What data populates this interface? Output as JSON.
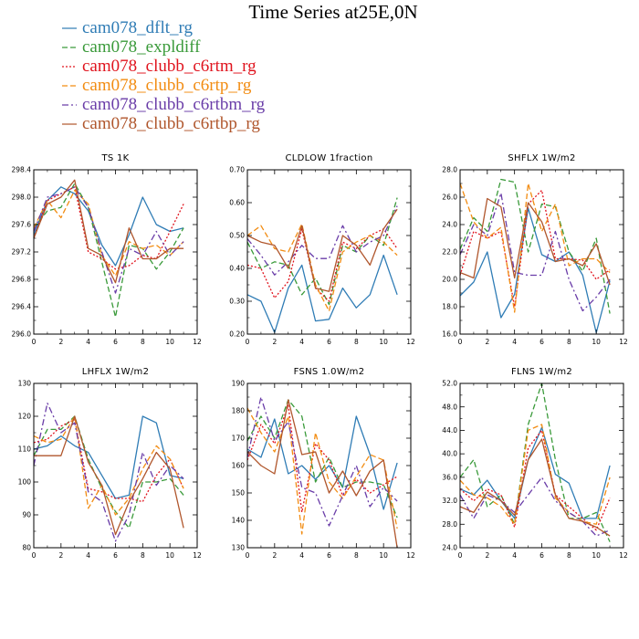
{
  "figure": {
    "title": "Time Series at25E,0N"
  },
  "colors": {
    "cam078_dflt_rg": "#2f7cb5",
    "cam078_expldiff": "#3a9a3a",
    "cam078_clubb_c6rtm_rg": "#e0141e",
    "cam078_clubb_c6rtp_rg": "#f28c12",
    "cam078_clubb_c6rtbm_rg": "#6a3da8",
    "cam078_clubb_c6rtbp_rg": "#b0562c"
  },
  "legend": [
    {
      "label": "cam078_dflt_rg",
      "color": "#2f7cb5",
      "dash": "solid"
    },
    {
      "label": "cam078_expldiff",
      "color": "#3a9a3a",
      "dash": "dashed"
    },
    {
      "label": "cam078_clubb_c6rtm_rg",
      "color": "#e0141e",
      "dash": "dotted"
    },
    {
      "label": "cam078_clubb_c6rtp_rg",
      "color": "#f28c12",
      "dash": "dashed"
    },
    {
      "label": "cam078_clubb_c6rtbm_rg",
      "color": "#6a3da8",
      "dash": "dashdot"
    },
    {
      "label": "cam078_clubb_c6rtbp_rg",
      "color": "#b0562c",
      "dash": "solid"
    }
  ],
  "chart_data": [
    {
      "type": "line",
      "title": "TS   1K",
      "xlim": [
        0,
        12
      ],
      "xticks": [
        0,
        2,
        4,
        6,
        8,
        10,
        12
      ],
      "ylim": [
        296.0,
        298.4
      ],
      "yticks": [
        "296.0",
        "296.4",
        "296.8",
        "297.2",
        "297.6",
        "298.0",
        "298.4"
      ],
      "x": [
        0,
        1,
        2,
        3,
        4,
        5,
        6,
        7,
        8,
        9,
        10,
        11
      ],
      "series": [
        {
          "name": "cam078_dflt_rg",
          "values": [
            297.45,
            297.95,
            298.15,
            298.05,
            297.8,
            297.3,
            297.0,
            297.45,
            298.0,
            297.6,
            297.5,
            297.55
          ]
        },
        {
          "name": "cam078_expldiff",
          "values": [
            297.55,
            297.8,
            297.85,
            298.2,
            297.85,
            297.05,
            296.25,
            297.3,
            297.25,
            296.95,
            297.2,
            297.55
          ]
        },
        {
          "name": "cam078_clubb_c6rtm_rg",
          "values": [
            297.4,
            297.95,
            298.05,
            298.15,
            297.2,
            297.1,
            296.95,
            297.0,
            297.15,
            297.1,
            297.5,
            297.9
          ]
        },
        {
          "name": "cam078_clubb_c6rtp_rg",
          "values": [
            297.55,
            297.95,
            297.7,
            298.1,
            297.9,
            297.15,
            296.85,
            297.35,
            297.25,
            297.3,
            297.15,
            297.35
          ]
        },
        {
          "name": "cam078_clubb_c6rtbm_rg",
          "values": [
            297.5,
            298.0,
            298.05,
            298.15,
            297.85,
            297.2,
            296.6,
            297.25,
            297.15,
            297.5,
            297.15,
            297.35
          ]
        },
        {
          "name": "cam078_clubb_c6rtbp_rg",
          "values": [
            297.4,
            297.9,
            298.0,
            298.25,
            297.25,
            297.15,
            296.75,
            297.55,
            297.1,
            297.1,
            297.25,
            297.25
          ]
        }
      ]
    },
    {
      "type": "line",
      "title": "CLDLOW   1fraction",
      "xlim": [
        0,
        12
      ],
      "xticks": [
        0,
        2,
        4,
        6,
        8,
        10,
        12
      ],
      "ylim": [
        0.2,
        0.7
      ],
      "yticks": [
        "0.20",
        "0.30",
        "0.40",
        "0.50",
        "0.60",
        "0.70"
      ],
      "x": [
        0,
        1,
        2,
        3,
        4,
        5,
        6,
        7,
        8,
        9,
        10,
        11
      ],
      "series": [
        {
          "name": "cam078_dflt_rg",
          "values": [
            0.32,
            0.3,
            0.205,
            0.34,
            0.41,
            0.24,
            0.245,
            0.34,
            0.28,
            0.32,
            0.44,
            0.32
          ]
        },
        {
          "name": "cam078_expldiff",
          "values": [
            0.48,
            0.4,
            0.42,
            0.41,
            0.32,
            0.37,
            0.29,
            0.47,
            0.45,
            0.5,
            0.47,
            0.615
          ]
        },
        {
          "name": "cam078_clubb_c6rtm_rg",
          "values": [
            0.41,
            0.4,
            0.31,
            0.36,
            0.52,
            0.34,
            0.3,
            0.48,
            0.46,
            0.5,
            0.52,
            0.46
          ]
        },
        {
          "name": "cam078_clubb_c6rtp_rg",
          "values": [
            0.5,
            0.53,
            0.46,
            0.45,
            0.535,
            0.35,
            0.27,
            0.45,
            0.48,
            0.5,
            0.48,
            0.44
          ]
        },
        {
          "name": "cam078_clubb_c6rtbm_rg",
          "values": [
            0.49,
            0.44,
            0.38,
            0.42,
            0.47,
            0.43,
            0.43,
            0.53,
            0.45,
            0.48,
            0.5,
            0.59
          ]
        },
        {
          "name": "cam078_clubb_c6rtbp_rg",
          "values": [
            0.5,
            0.48,
            0.47,
            0.4,
            0.53,
            0.34,
            0.33,
            0.5,
            0.47,
            0.41,
            0.52,
            0.58
          ]
        }
      ]
    },
    {
      "type": "line",
      "title": "SHFLX   1W/m2",
      "xlim": [
        0,
        12
      ],
      "xticks": [
        0,
        2,
        4,
        6,
        8,
        10,
        12
      ],
      "ylim": [
        16.0,
        28.0
      ],
      "yticks": [
        "16.0",
        "18.0",
        "20.0",
        "22.0",
        "24.0",
        "26.0",
        "28.0"
      ],
      "x": [
        0,
        1,
        2,
        3,
        4,
        5,
        6,
        7,
        8,
        9,
        10,
        11
      ],
      "series": [
        {
          "name": "cam078_dflt_rg",
          "values": [
            18.8,
            19.8,
            22.0,
            17.2,
            18.9,
            25.2,
            21.8,
            21.3,
            22.0,
            20.3,
            16.1,
            19.9
          ]
        },
        {
          "name": "cam078_expldiff",
          "values": [
            22.2,
            24.5,
            23.5,
            27.3,
            27.1,
            22.0,
            25.5,
            25.3,
            22.0,
            20.6,
            23.0,
            17.5
          ]
        },
        {
          "name": "cam078_clubb_c6rtm_rg",
          "values": [
            20.3,
            23.5,
            23.0,
            23.5,
            18.0,
            25.5,
            26.5,
            21.5,
            21.5,
            21.4,
            20.0,
            20.7
          ]
        },
        {
          "name": "cam078_clubb_c6rtp_rg",
          "values": [
            27.0,
            24.2,
            23.0,
            23.8,
            17.6,
            27.0,
            23.5,
            25.5,
            21.0,
            21.5,
            21.5,
            20.5
          ]
        },
        {
          "name": "cam078_clubb_c6rtbm_rg",
          "values": [
            21.8,
            24.0,
            23.2,
            26.3,
            20.5,
            20.3,
            20.3,
            23.5,
            20.0,
            17.7,
            18.7,
            20.0
          ]
        },
        {
          "name": "cam078_clubb_c6rtbp_rg",
          "values": [
            20.5,
            20.1,
            25.9,
            25.3,
            20.1,
            25.6,
            24.2,
            21.3,
            21.5,
            21.0,
            22.6,
            19.6
          ]
        }
      ]
    },
    {
      "type": "line",
      "title": "LHFLX   1W/m2",
      "xlim": [
        0,
        12
      ],
      "xticks": [
        0,
        2,
        4,
        6,
        8,
        10,
        12
      ],
      "ylim": [
        80,
        130
      ],
      "yticks": [
        "80",
        "90",
        "100",
        "110",
        "120",
        "130"
      ],
      "x": [
        0,
        1,
        2,
        3,
        4,
        5,
        6,
        7,
        8,
        9,
        10,
        11
      ],
      "series": [
        {
          "name": "cam078_dflt_rg",
          "values": [
            110,
            111,
            114,
            111,
            109,
            102,
            95,
            96,
            120,
            118,
            102,
            101
          ]
        },
        {
          "name": "cam078_expldiff",
          "values": [
            108,
            116,
            116,
            120,
            107,
            98,
            91,
            86,
            100,
            100,
            101,
            96
          ]
        },
        {
          "name": "cam078_clubb_c6rtm_rg",
          "values": [
            112,
            113,
            117,
            119,
            98,
            97,
            95,
            95,
            94,
            102,
            107,
            98
          ]
        },
        {
          "name": "cam078_clubb_c6rtp_rg",
          "values": [
            114,
            112,
            113,
            120,
            92,
            99,
            90,
            95,
            104,
            111,
            107,
            98
          ]
        },
        {
          "name": "cam078_clubb_c6rtbm_rg",
          "values": [
            105,
            124,
            115,
            118,
            97,
            94,
            82,
            90,
            109,
            99,
            105,
            101
          ]
        },
        {
          "name": "cam078_clubb_c6rtbp_rg",
          "values": [
            108,
            108,
            108,
            120,
            106,
            99,
            84,
            94,
            101,
            109,
            104,
            86
          ]
        }
      ]
    },
    {
      "type": "line",
      "title": "FSNS   1.0W/m2",
      "xlim": [
        0,
        12
      ],
      "xticks": [
        0,
        2,
        4,
        6,
        8,
        10,
        12
      ],
      "ylim": [
        130,
        190
      ],
      "yticks": [
        "130",
        "140",
        "150",
        "160",
        "170",
        "180",
        "190"
      ],
      "x": [
        0,
        1,
        2,
        3,
        4,
        5,
        6,
        7,
        8,
        9,
        10,
        11
      ],
      "series": [
        {
          "name": "cam078_dflt_rg",
          "values": [
            166,
            163,
            177,
            157,
            160,
            155,
            160,
            152,
            178,
            164,
            144,
            161
          ]
        },
        {
          "name": "cam078_expldiff",
          "values": [
            169,
            178,
            170,
            184,
            178,
            154,
            163,
            152,
            154,
            154,
            153,
            141
          ]
        },
        {
          "name": "cam078_clubb_c6rtm_rg",
          "values": [
            162,
            175,
            168,
            182,
            143,
            168,
            162,
            149,
            155,
            150,
            153,
            156
          ]
        },
        {
          "name": "cam078_clubb_c6rtp_rg",
          "values": [
            181,
            172,
            165,
            178,
            135,
            172,
            154,
            148,
            156,
            164,
            162,
            137
          ]
        },
        {
          "name": "cam078_clubb_c6rtbm_rg",
          "values": [
            163,
            185,
            169,
            176,
            152,
            150,
            138,
            149,
            160,
            145,
            152,
            147
          ]
        },
        {
          "name": "cam078_clubb_c6rtbp_rg",
          "values": [
            165,
            160,
            157,
            184,
            164,
            165,
            150,
            158,
            149,
            158,
            162,
            130
          ]
        }
      ]
    },
    {
      "type": "line",
      "title": "FLNS   1W/m2",
      "xlim": [
        0,
        12
      ],
      "xticks": [
        0,
        2,
        4,
        6,
        8,
        10,
        12
      ],
      "ylim": [
        24.0,
        52.0
      ],
      "yticks": [
        "24.0",
        "28.0",
        "32.0",
        "36.0",
        "40.0",
        "44.0",
        "48.0",
        "52.0"
      ],
      "x": [
        0,
        1,
        2,
        3,
        4,
        5,
        6,
        7,
        8,
        9,
        10,
        11
      ],
      "series": [
        {
          "name": "cam078_dflt_rg",
          "values": [
            34,
            33,
            35.5,
            32,
            29,
            39,
            44.5,
            36.5,
            35,
            29,
            29,
            38
          ]
        },
        {
          "name": "cam078_expldiff",
          "values": [
            36,
            39,
            31,
            33,
            28,
            45,
            52,
            39,
            29,
            29,
            30,
            25
          ]
        },
        {
          "name": "cam078_clubb_c6rtm_rg",
          "values": [
            34,
            32,
            34,
            33,
            27.5,
            41,
            44,
            33,
            31,
            29,
            27,
            32.5
          ]
        },
        {
          "name": "cam078_clubb_c6rtp_rg",
          "values": [
            35.5,
            33,
            32.5,
            31,
            28,
            44,
            45,
            32.5,
            30,
            28.5,
            28,
            36
          ]
        },
        {
          "name": "cam078_clubb_c6rtbm_rg",
          "values": [
            33,
            29,
            33,
            32,
            30,
            33,
            36,
            32,
            30,
            28.5,
            26,
            27
          ]
        },
        {
          "name": "cam078_clubb_c6rtbp_rg",
          "values": [
            31,
            30,
            33.5,
            32,
            29.5,
            39,
            42.5,
            33,
            29,
            28.5,
            27.5,
            26
          ]
        }
      ]
    }
  ]
}
